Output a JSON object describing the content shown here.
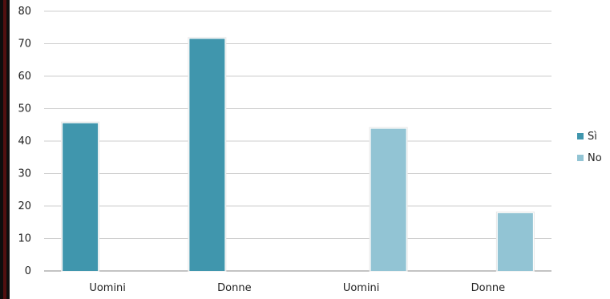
{
  "chart_data": {
    "type": "bar",
    "categories": [
      "Uomini",
      "Donne",
      "Uomini",
      "Donne"
    ],
    "series": [
      {
        "name": "Sì",
        "values": [
          45.5,
          71.5,
          null,
          null
        ],
        "color": "#4096ad"
      },
      {
        "name": "No",
        "values": [
          null,
          null,
          43.8,
          17.8
        ],
        "color": "#92c4d4"
      }
    ],
    "title": "",
    "xlabel": "",
    "ylabel": "",
    "ylim": [
      0,
      80
    ],
    "yticks": [
      0,
      10,
      20,
      30,
      40,
      50,
      60,
      70,
      80
    ],
    "grid": true,
    "legend_position": "right"
  }
}
